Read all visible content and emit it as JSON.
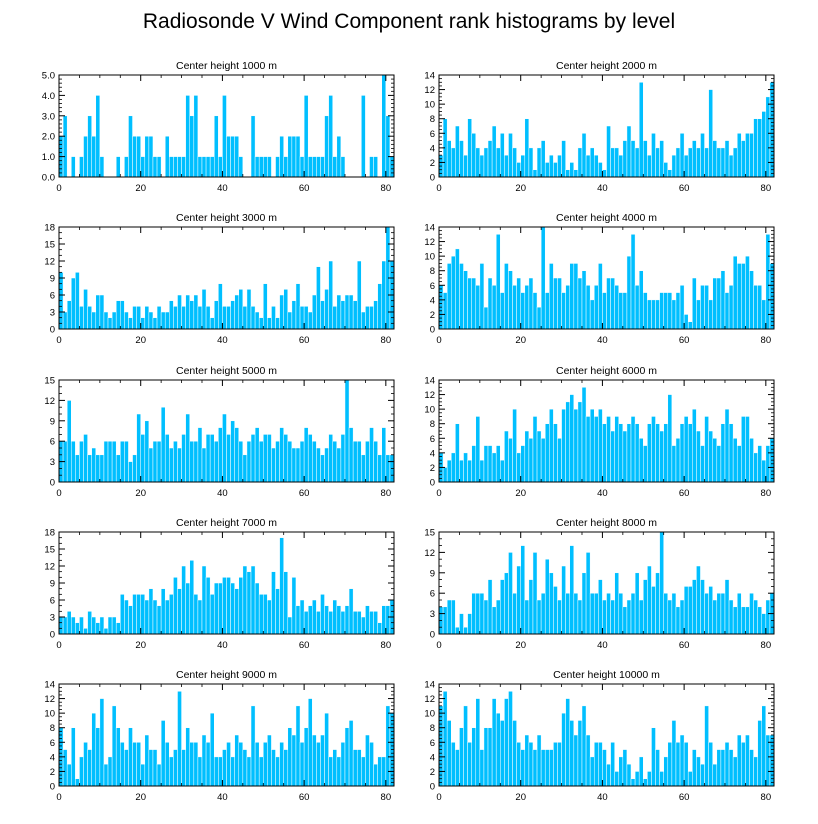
{
  "title": "Radiosonde V Wind Component rank histograms by level",
  "colors": {
    "bar_fill": "#00bfff",
    "bar_edge": "#ffffff",
    "axis": "#000000"
  },
  "chart_data": [
    {
      "type": "bar",
      "title": "Center height 1000 m",
      "xlim": [
        0,
        82
      ],
      "ylim": [
        0,
        5
      ],
      "xticks": [
        0,
        20,
        40,
        60,
        80
      ],
      "yticks": [
        0,
        1,
        2,
        3,
        4,
        5
      ],
      "ytick_labels": [
        "0.0",
        "1.0",
        "2.0",
        "3.0",
        "4.0",
        "5.0"
      ],
      "values": [
        2,
        3,
        0,
        1,
        0,
        1,
        2,
        3,
        2,
        4,
        1,
        0,
        0,
        0,
        1,
        0,
        1,
        3,
        2,
        2,
        1,
        2,
        2,
        1,
        1,
        0,
        2,
        1,
        1,
        1,
        1,
        4,
        3,
        4,
        1,
        1,
        1,
        1,
        3,
        1,
        4,
        2,
        2,
        2,
        1,
        0,
        0,
        3,
        1,
        1,
        1,
        1,
        0,
        1,
        2,
        1,
        2,
        2,
        2,
        1,
        4,
        1,
        1,
        1,
        1,
        3,
        4,
        1,
        2,
        1,
        0,
        0,
        0,
        0,
        4,
        0,
        1,
        1,
        0,
        5,
        3,
        1
      ]
    },
    {
      "type": "bar",
      "title": "Center height 2000 m",
      "xlim": [
        0,
        82
      ],
      "ylim": [
        0,
        14
      ],
      "xticks": [
        0,
        20,
        40,
        60,
        80
      ],
      "yticks": [
        0,
        2,
        4,
        6,
        8,
        10,
        12,
        14
      ],
      "ytick_labels": [
        "0",
        "2",
        "4",
        "6",
        "8",
        "10",
        "12",
        "14"
      ],
      "values": [
        3,
        8,
        5,
        4,
        7,
        5,
        3,
        8,
        6,
        4,
        3,
        4,
        5,
        7,
        4,
        6,
        3,
        6,
        4,
        2,
        3,
        8,
        4,
        1,
        4,
        5,
        2,
        3,
        2,
        3,
        5,
        1,
        2,
        1,
        4,
        6,
        3,
        4,
        3,
        2,
        1,
        7,
        4,
        4,
        3,
        5,
        7,
        5,
        4,
        13,
        5,
        3,
        6,
        4,
        5,
        2,
        1,
        3,
        4,
        6,
        3,
        4,
        5,
        4,
        6,
        4,
        12,
        5,
        4,
        4,
        5,
        3,
        4,
        6,
        5,
        6,
        6,
        8,
        8,
        9,
        11,
        13
      ]
    },
    {
      "type": "bar",
      "title": "Center height 3000 m",
      "xlim": [
        0,
        82
      ],
      "ylim": [
        0,
        18
      ],
      "xticks": [
        0,
        20,
        40,
        60,
        80
      ],
      "yticks": [
        0,
        3,
        6,
        9,
        12,
        15,
        18
      ],
      "ytick_labels": [
        "0",
        "3",
        "6",
        "9",
        "12",
        "15",
        "18"
      ],
      "values": [
        10,
        3,
        5,
        9,
        10,
        4,
        7,
        4,
        3,
        6,
        6,
        3,
        2,
        3,
        5,
        5,
        3,
        2,
        4,
        4,
        2,
        4,
        3,
        2,
        4,
        3,
        3,
        5,
        4,
        6,
        4,
        6,
        5,
        6,
        4,
        7,
        4,
        2,
        5,
        8,
        4,
        4,
        5,
        6,
        7,
        4,
        7,
        4,
        3,
        2,
        8,
        2,
        4,
        2,
        6,
        7,
        3,
        5,
        8,
        4,
        4,
        3,
        6,
        11,
        5,
        7,
        12,
        4,
        6,
        5,
        6,
        6,
        5,
        12,
        3,
        4,
        4,
        5,
        8,
        12,
        18,
        12
      ]
    },
    {
      "type": "bar",
      "title": "Center height 4000 m",
      "xlim": [
        0,
        82
      ],
      "ylim": [
        0,
        14
      ],
      "xticks": [
        0,
        20,
        40,
        60,
        80
      ],
      "yticks": [
        0,
        2,
        4,
        6,
        8,
        10,
        12,
        14
      ],
      "ytick_labels": [
        "0",
        "2",
        "4",
        "6",
        "8",
        "10",
        "12",
        "14"
      ],
      "values": [
        6,
        5,
        9,
        10,
        11,
        9,
        8,
        7,
        7,
        6,
        9,
        3,
        7,
        6,
        13,
        5,
        9,
        8,
        6,
        7,
        5,
        6,
        7,
        5,
        3,
        14,
        5,
        9,
        7,
        7,
        5,
        6,
        9,
        9,
        7,
        8,
        6,
        4,
        6,
        9,
        5,
        7,
        7,
        6,
        5,
        5,
        10,
        13,
        6,
        8,
        5,
        4,
        4,
        4,
        5,
        5,
        5,
        4,
        5,
        6,
        2,
        1,
        7,
        4,
        6,
        6,
        4,
        7,
        7,
        8,
        5,
        6,
        10,
        9,
        9,
        10,
        8,
        6,
        6,
        4,
        13,
        9
      ]
    },
    {
      "type": "bar",
      "title": "Center height 5000 m",
      "xlim": [
        0,
        82
      ],
      "ylim": [
        0,
        15
      ],
      "xticks": [
        0,
        20,
        40,
        60,
        80
      ],
      "yticks": [
        0,
        3,
        6,
        9,
        12,
        15
      ],
      "ytick_labels": [
        "0",
        "3",
        "6",
        "9",
        "12",
        "15"
      ],
      "values": [
        6,
        6,
        12,
        6,
        4,
        6,
        7,
        4,
        5,
        4,
        4,
        6,
        6,
        6,
        4,
        6,
        6,
        3,
        4,
        10,
        7,
        9,
        5,
        6,
        6,
        11,
        7,
        5,
        6,
        5,
        7,
        10,
        6,
        6,
        8,
        5,
        7,
        7,
        6,
        8,
        10,
        7,
        9,
        8,
        6,
        4,
        6,
        7,
        8,
        6,
        7,
        7,
        5,
        6,
        8,
        7,
        6,
        5,
        5,
        6,
        8,
        7,
        6,
        5,
        4,
        5,
        7,
        6,
        5,
        7,
        15,
        8,
        6,
        6,
        4,
        6,
        8,
        6,
        4,
        8,
        4,
        4
      ]
    },
    {
      "type": "bar",
      "title": "Center height 6000 m",
      "xlim": [
        0,
        82
      ],
      "ylim": [
        0,
        14
      ],
      "xticks": [
        0,
        20,
        40,
        60,
        80
      ],
      "yticks": [
        0,
        2,
        4,
        6,
        8,
        10,
        12,
        14
      ],
      "ytick_labels": [
        "0",
        "2",
        "4",
        "6",
        "8",
        "10",
        "12",
        "14"
      ],
      "values": [
        4,
        2,
        3,
        4,
        8,
        3,
        4,
        3,
        5,
        9,
        3,
        5,
        5,
        4,
        5,
        3,
        7,
        6,
        10,
        4,
        5,
        7,
        6,
        9,
        7,
        6,
        8,
        10,
        8,
        6,
        10,
        11,
        12,
        10,
        11,
        13,
        9,
        10,
        9,
        10,
        8,
        9,
        7,
        9,
        8,
        7,
        8,
        9,
        8,
        6,
        5,
        8,
        9,
        8,
        7,
        8,
        12,
        5,
        6,
        8,
        9,
        8,
        10,
        7,
        5,
        9,
        7,
        6,
        5,
        8,
        10,
        8,
        6,
        5,
        9,
        9,
        6,
        4,
        5,
        3,
        5,
        6
      ]
    },
    {
      "type": "bar",
      "title": "Center height 7000 m",
      "xlim": [
        0,
        82
      ],
      "ylim": [
        0,
        18
      ],
      "xticks": [
        0,
        20,
        40,
        60,
        80
      ],
      "yticks": [
        0,
        3,
        6,
        9,
        12,
        15,
        18
      ],
      "ytick_labels": [
        "0",
        "3",
        "6",
        "9",
        "12",
        "15",
        "18"
      ],
      "values": [
        3,
        3,
        4,
        3,
        2,
        3,
        1,
        4,
        3,
        2,
        3,
        1,
        3,
        3,
        2,
        7,
        6,
        5,
        7,
        7,
        7,
        6,
        8,
        6,
        5,
        8,
        6,
        7,
        10,
        8,
        12,
        9,
        13,
        7,
        6,
        12,
        10,
        7,
        9,
        9,
        10,
        10,
        9,
        8,
        10,
        12,
        11,
        12,
        9,
        7,
        7,
        6,
        11,
        8,
        17,
        11,
        3,
        10,
        5,
        6,
        4,
        5,
        6,
        4,
        7,
        5,
        4,
        6,
        5,
        4,
        5,
        8,
        4,
        4,
        3,
        5,
        4,
        4,
        2,
        5,
        5,
        6
      ]
    },
    {
      "type": "bar",
      "title": "Center height 8000 m",
      "xlim": [
        0,
        82
      ],
      "ylim": [
        0,
        15
      ],
      "xticks": [
        0,
        20,
        40,
        60,
        80
      ],
      "yticks": [
        0,
        3,
        6,
        9,
        12,
        15
      ],
      "ytick_labels": [
        "0",
        "3",
        "6",
        "9",
        "12",
        "15"
      ],
      "values": [
        4,
        4,
        5,
        5,
        1,
        3,
        1,
        3,
        6,
        6,
        6,
        5,
        8,
        4,
        5,
        8,
        9,
        12,
        6,
        10,
        13,
        5,
        8,
        12,
        5,
        6,
        11,
        9,
        7,
        5,
        10,
        6,
        13,
        6,
        5,
        9,
        12,
        6,
        6,
        8,
        5,
        6,
        5,
        9,
        6,
        4,
        5,
        6,
        9,
        5,
        8,
        10,
        7,
        9,
        15,
        6,
        5,
        6,
        4,
        5,
        7,
        7,
        8,
        10,
        8,
        6,
        7,
        5,
        6,
        6,
        8,
        5,
        4,
        6,
        4,
        4,
        6,
        5,
        4,
        3,
        5,
        6
      ]
    },
    {
      "type": "bar",
      "title": "Center height 9000 m",
      "xlim": [
        0,
        82
      ],
      "ylim": [
        0,
        14
      ],
      "xticks": [
        0,
        20,
        40,
        60,
        80
      ],
      "yticks": [
        0,
        2,
        4,
        6,
        8,
        10,
        12,
        14
      ],
      "ytick_labels": [
        "0",
        "2",
        "4",
        "6",
        "8",
        "10",
        "12",
        "14"
      ],
      "values": [
        8,
        5,
        3,
        8,
        1,
        4,
        6,
        5,
        10,
        8,
        12,
        3,
        4,
        11,
        8,
        6,
        5,
        8,
        6,
        6,
        3,
        7,
        5,
        5,
        3,
        9,
        6,
        4,
        5,
        13,
        5,
        8,
        6,
        6,
        4,
        7,
        6,
        10,
        4,
        4,
        5,
        6,
        4,
        7,
        6,
        5,
        4,
        11,
        6,
        4,
        6,
        7,
        5,
        4,
        6,
        5,
        8,
        7,
        11,
        6,
        8,
        12,
        7,
        6,
        7,
        10,
        4,
        5,
        4,
        6,
        8,
        9,
        5,
        5,
        4,
        7,
        6,
        3,
        4,
        4,
        11,
        10
      ]
    },
    {
      "type": "bar",
      "title": "Center height 10000 m",
      "xlim": [
        0,
        82
      ],
      "ylim": [
        0,
        14
      ],
      "xticks": [
        0,
        20,
        40,
        60,
        80
      ],
      "yticks": [
        0,
        2,
        4,
        6,
        8,
        10,
        12,
        14
      ],
      "ytick_labels": [
        "0",
        "2",
        "4",
        "6",
        "8",
        "10",
        "12",
        "14"
      ],
      "values": [
        11,
        13,
        9,
        6,
        5,
        8,
        11,
        6,
        8,
        12,
        5,
        8,
        8,
        12,
        10,
        9,
        12,
        13,
        9,
        6,
        5,
        7,
        6,
        5,
        7,
        5,
        5,
        5,
        6,
        6,
        10,
        12,
        9,
        7,
        9,
        11,
        7,
        4,
        6,
        6,
        5,
        3,
        6,
        2,
        4,
        5,
        3,
        1,
        2,
        4,
        1,
        2,
        8,
        5,
        2,
        4,
        6,
        9,
        6,
        7,
        6,
        2,
        5,
        4,
        3,
        11,
        6,
        3,
        5,
        5,
        6,
        5,
        4,
        7,
        6,
        7,
        5,
        4,
        9,
        11,
        7,
        7
      ]
    }
  ]
}
